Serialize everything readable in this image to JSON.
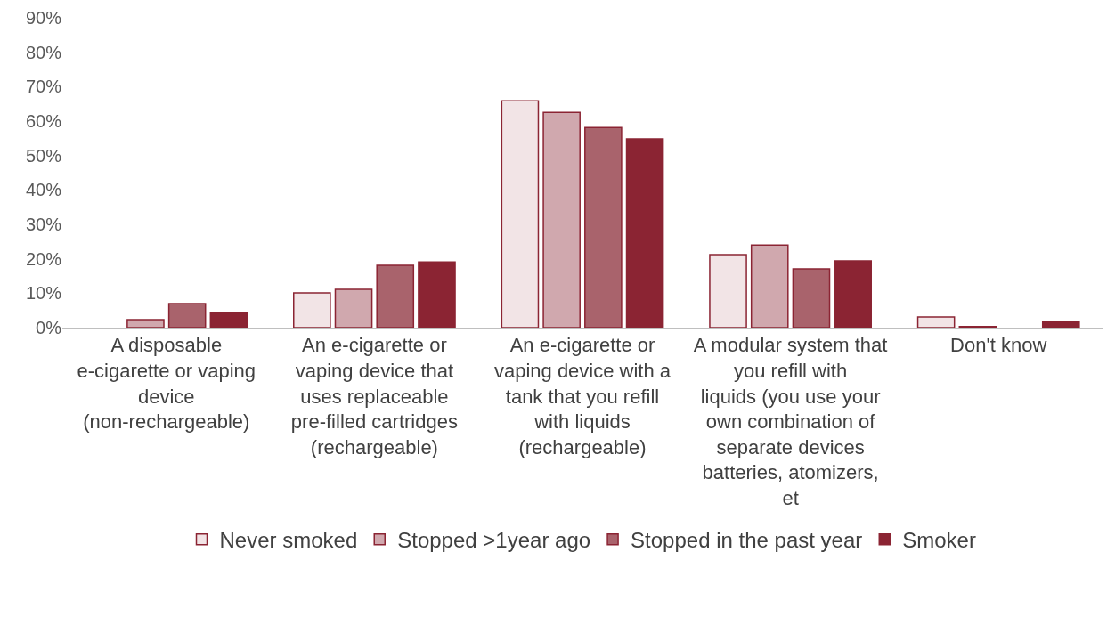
{
  "chart_data": {
    "type": "bar",
    "categories": [
      "A disposable e-cigarette or vaping device (non-rechargeable)",
      "An e-cigarette or vaping device that uses replaceable pre-filled cartridges (rechargeable)",
      "An e-cigarette or vaping device with a tank that you refill with liquids (rechargeable)",
      "A modular system that you refill with liquids (you use your own combination of separate devices batteries, atomizers, et",
      "Don't know"
    ],
    "series": [
      {
        "name": "Never smoked",
        "color": "#f2e4e6",
        "values": [
          null,
          10.1,
          65.9,
          21.2,
          3.1
        ]
      },
      {
        "name": "Stopped >1year ago",
        "color": "#d0a8ae",
        "values": [
          2.3,
          11.1,
          62.5,
          24.0,
          0.3
        ]
      },
      {
        "name": "Stopped in the past year",
        "color": "#a9636c",
        "values": [
          7.0,
          18.1,
          58.1,
          17.1,
          null
        ]
      },
      {
        "name": "Smoker",
        "color": "#8b2433",
        "values": [
          4.4,
          19.1,
          54.8,
          19.4,
          1.8
        ]
      }
    ],
    "ylim": [
      0,
      90
    ],
    "yticks": [
      {
        "value": 0,
        "label": "0%"
      },
      {
        "value": 10,
        "label": "10%"
      },
      {
        "value": 20,
        "label": "20%"
      },
      {
        "value": 30,
        "label": "30%"
      },
      {
        "value": 40,
        "label": "40%"
      },
      {
        "value": 50,
        "label": "50%"
      },
      {
        "value": 60,
        "label": "60%"
      },
      {
        "value": 70,
        "label": "70%"
      },
      {
        "value": 80,
        "label": "80%"
      },
      {
        "value": 90,
        "label": "90%"
      }
    ],
    "legend": "bottom"
  }
}
